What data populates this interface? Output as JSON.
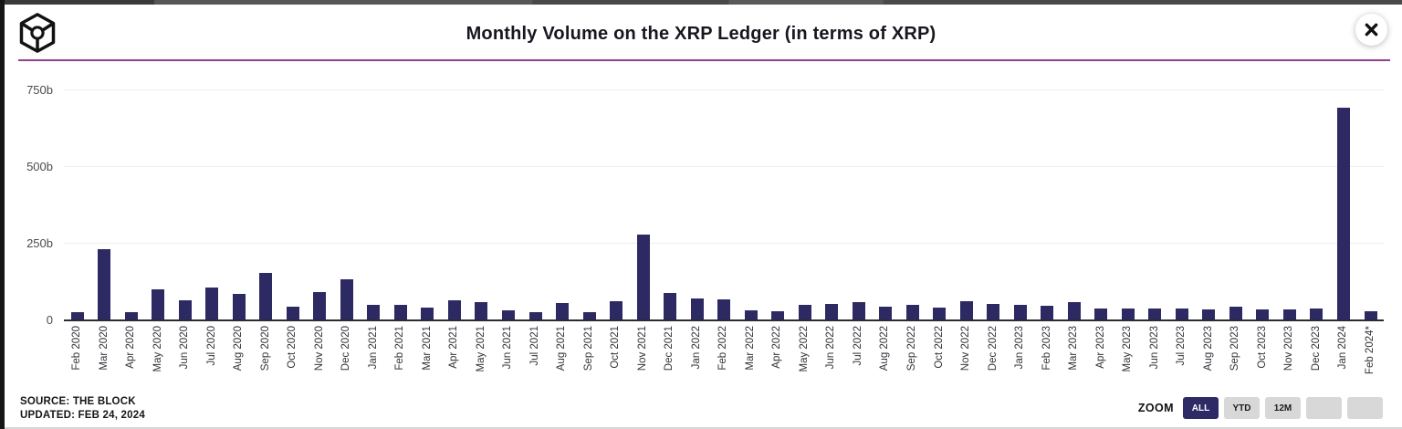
{
  "header": {
    "title": "Monthly Volume on the XRP Ledger (in terms of XRP)"
  },
  "chart_data": {
    "type": "bar",
    "title": "Monthly Volume on the XRP Ledger (in terms of XRP)",
    "xlabel": "",
    "ylabel": "",
    "unit": "billions of XRP",
    "ylim": [
      0,
      750
    ],
    "bar_color": "#2d2963",
    "grid": true,
    "yticks": [
      {
        "label": "750b",
        "value": 750
      },
      {
        "label": "500b",
        "value": 500
      },
      {
        "label": "250b",
        "value": 250
      },
      {
        "label": "0",
        "value": 0
      }
    ],
    "categories": [
      "Feb 2020",
      "Mar 2020",
      "Apr 2020",
      "May 2020",
      "Jun 2020",
      "Jul 2020",
      "Aug 2020",
      "Sep 2020",
      "Oct 2020",
      "Nov 2020",
      "Dec 2020",
      "Jan 2021",
      "Feb 2021",
      "Mar 2021",
      "Apr 2021",
      "May 2021",
      "Jun 2021",
      "Jul 2021",
      "Aug 2021",
      "Sep 2021",
      "Oct 2021",
      "Nov 2021",
      "Dec 2021",
      "Jan 2022",
      "Feb 2022",
      "Mar 2022",
      "Apr 2022",
      "May 2022",
      "Jun 2022",
      "Jul 2022",
      "Aug 2022",
      "Sep 2022",
      "Oct 2022",
      "Nov 2022",
      "Dec 2022",
      "Jan 2023",
      "Feb 2023",
      "Mar 2023",
      "Apr 2023",
      "May 2023",
      "Jun 2023",
      "Jul 2023",
      "Aug 2023",
      "Sep 2023",
      "Oct 2023",
      "Nov 2023",
      "Dec 2023",
      "Jan 2024",
      "Feb 2024*"
    ],
    "values": [
      25,
      230,
      25,
      97,
      63,
      103,
      82,
      152,
      42,
      90,
      132,
      47,
      48,
      40,
      62,
      56,
      29,
      24,
      55,
      24,
      59,
      278,
      87,
      70,
      66,
      30,
      26,
      47,
      50,
      57,
      43,
      49,
      38,
      60,
      50,
      48,
      44,
      58,
      36,
      37,
      36,
      36,
      32,
      42,
      33,
      34,
      37,
      690,
      27
    ]
  },
  "footer": {
    "source": "SOURCE: THE BLOCK",
    "updated": "UPDATED: FEB 24, 2024"
  },
  "zoom_controls": {
    "label": "ZOOM",
    "buttons": [
      {
        "label": "ALL",
        "active": true
      },
      {
        "label": "YTD",
        "active": false
      },
      {
        "label": "12M",
        "active": false
      },
      {
        "label": "",
        "active": false
      },
      {
        "label": "",
        "active": false
      }
    ]
  },
  "icons": {
    "logo": "the-block-cube-logo",
    "close": "close-x-icon"
  }
}
